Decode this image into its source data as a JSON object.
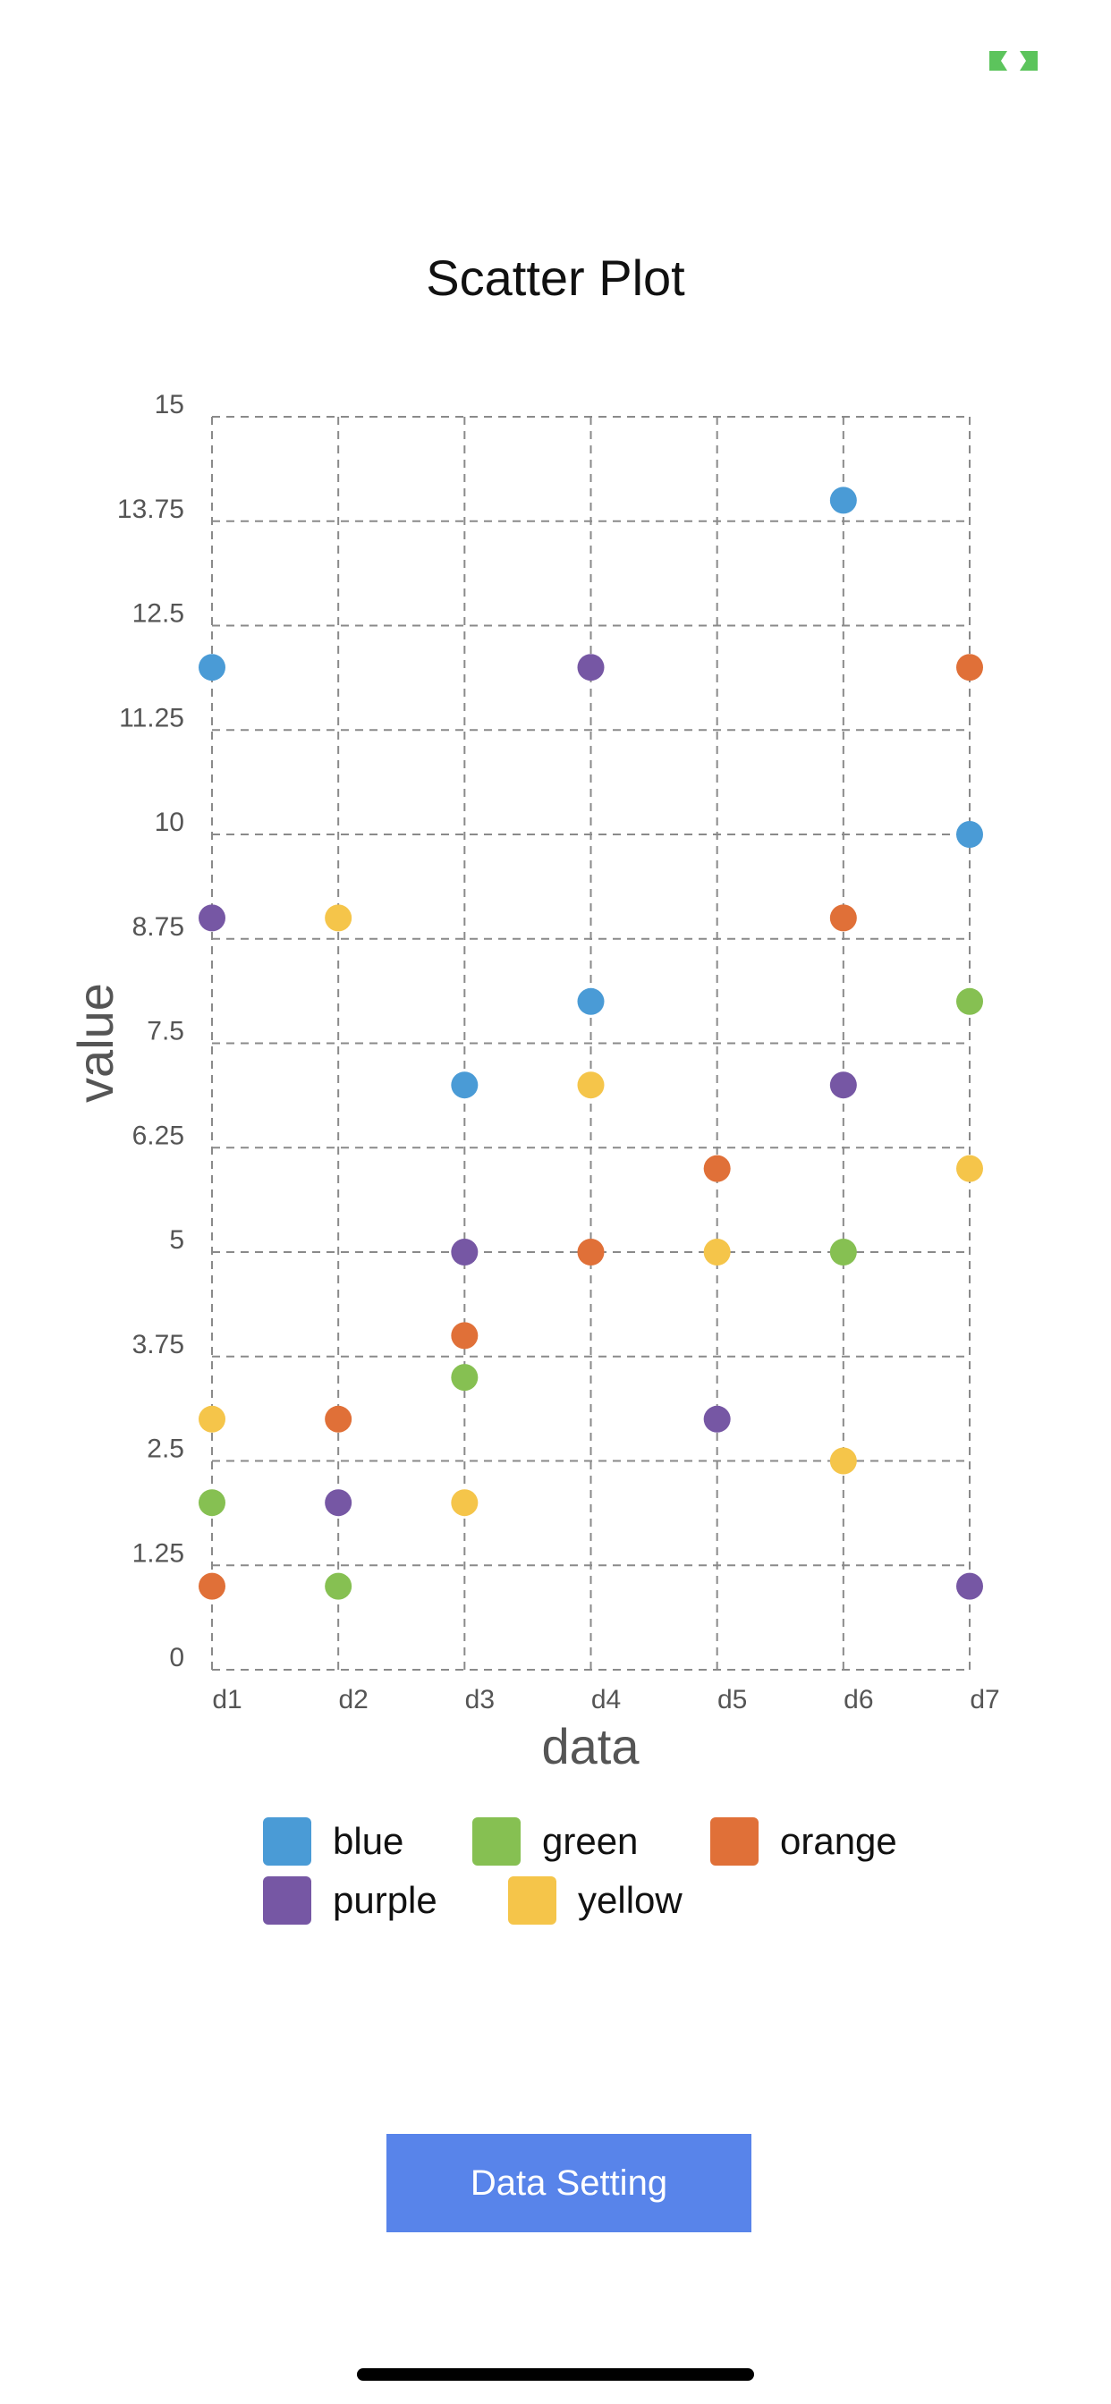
{
  "toolbar": {
    "fullscreen_icon": "exit-fullscreen-icon",
    "fullscreen_color": "#5cc45c"
  },
  "chart_data": {
    "type": "scatter",
    "title": "Scatter Plot",
    "xlabel": "data",
    "ylabel": "value",
    "categories": [
      "d1",
      "d2",
      "d3",
      "d4",
      "d5",
      "d6",
      "d7"
    ],
    "ylim": [
      0,
      15
    ],
    "yticks": [
      "0",
      "1.25",
      "2.5",
      "3.75",
      "5",
      "6.25",
      "7.5",
      "8.75",
      "10",
      "11.25",
      "12.5",
      "13.75",
      "15"
    ],
    "grid": true,
    "legend_position": "bottom",
    "series": [
      {
        "name": "blue",
        "color": "#4a9bd6",
        "points": [
          [
            "d1",
            12
          ],
          [
            "d3",
            7
          ],
          [
            "d4",
            8
          ],
          [
            "d6",
            14
          ],
          [
            "d7",
            10
          ]
        ]
      },
      {
        "name": "green",
        "color": "#86c052",
        "points": [
          [
            "d1",
            2
          ],
          [
            "d2",
            1
          ],
          [
            "d3",
            3.5
          ],
          [
            "d6",
            5
          ],
          [
            "d7",
            8
          ]
        ]
      },
      {
        "name": "orange",
        "color": "#e07038",
        "points": [
          [
            "d1",
            1
          ],
          [
            "d2",
            3
          ],
          [
            "d3",
            4
          ],
          [
            "d4",
            5
          ],
          [
            "d5",
            6
          ],
          [
            "d6",
            9
          ],
          [
            "d7",
            12
          ]
        ]
      },
      {
        "name": "purple",
        "color": "#7657a4",
        "points": [
          [
            "d1",
            9
          ],
          [
            "d2",
            2
          ],
          [
            "d3",
            5
          ],
          [
            "d4",
            12
          ],
          [
            "d5",
            3
          ],
          [
            "d6",
            7
          ],
          [
            "d7",
            1
          ]
        ]
      },
      {
        "name": "yellow",
        "color": "#f5c54a",
        "points": [
          [
            "d1",
            3
          ],
          [
            "d2",
            9
          ],
          [
            "d3",
            2
          ],
          [
            "d4",
            7
          ],
          [
            "d5",
            5
          ],
          [
            "d6",
            2.5
          ],
          [
            "d7",
            6
          ]
        ]
      }
    ]
  },
  "actions": {
    "data_setting_label": "Data Setting",
    "button_color": "#5884ea"
  }
}
